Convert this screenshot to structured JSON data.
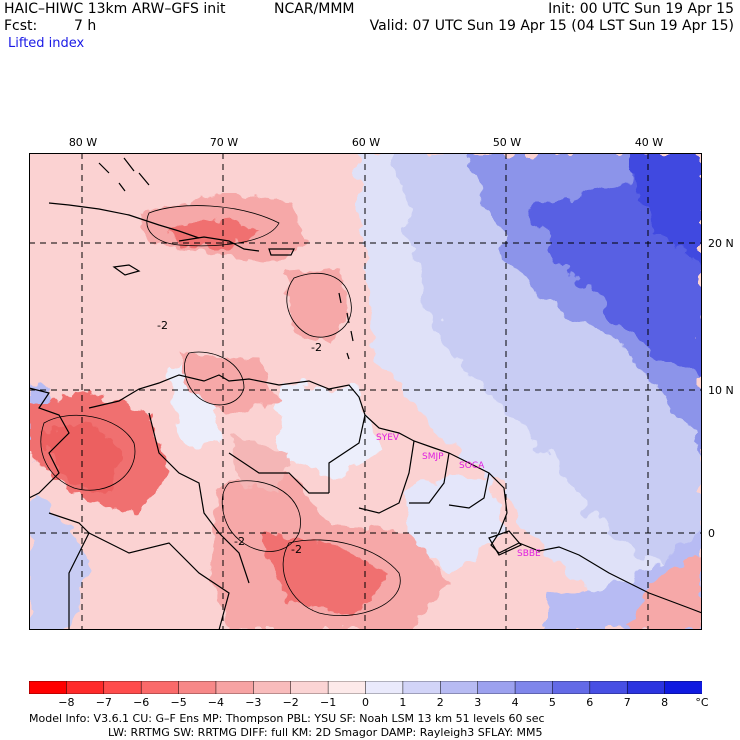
{
  "header": {
    "model_title": "HAIC–HIWC 13km ARW–GFS init",
    "org": "NCAR/MMM",
    "fcst_label": "Fcst:",
    "fcst_value": "7 h",
    "init": "Init: 00 UTC Sun 19 Apr 15",
    "valid": "Valid: 07 UTC Sun 19 Apr 15 (04 LST Sun 19 Apr 15)",
    "field_name": "Lifted index"
  },
  "map": {
    "lon_labels": [
      "80 W",
      "70 W",
      "60 W",
      "50 W",
      "40 W"
    ],
    "lat_labels": [
      "20 N",
      "10 N",
      "0"
    ],
    "contour_labels": [
      "-2",
      "-2",
      "-2",
      "-2"
    ],
    "stations": [
      "SYEV",
      "SMJP",
      "SOCA",
      "SBBE"
    ],
    "colors": {
      "strong_neg": "#f07070",
      "neg": "#f6a8a8",
      "weak_neg": "#fbd2d2",
      "neutral": "#f4f4fb",
      "weak_pos": "#c8ccf3",
      "pos": "#8c94ea",
      "strong_pos": "#5860e3",
      "station_text": "#e020e0",
      "coast": "#000000",
      "grid": "#000000"
    }
  },
  "colorbar": {
    "labels": [
      "−8",
      "−7",
      "−6",
      "−5",
      "−4",
      "−3",
      "−2",
      "−1",
      "0",
      "1",
      "2",
      "3",
      "4",
      "5",
      "6",
      "7",
      "8"
    ],
    "unit": "°C",
    "colors": [
      "#ff0000",
      "#ff2a2a",
      "#ff4c4c",
      "#fa6a6a",
      "#f78888",
      "#f7a3a3",
      "#f9bcbc",
      "#fbd4d4",
      "#fdeaea",
      "#eaeafc",
      "#d2d4f8",
      "#b7bbf3",
      "#9ca1ef",
      "#7f86eb",
      "#636ae7",
      "#474fe4",
      "#2b34e0",
      "#0f1ae0"
    ]
  },
  "footer": {
    "line1": "Model Info: V3.6.1     CU: G–F Ens  MP: Thompson      PBL: YSU        SF: Noah LSM      13 km    51 levels    60 sec",
    "line2": "LW: RRTMG     SW: RRTMG  DIFF: full     KM: 2D Smagor DAMP: Rayleigh3  SFLAY: MM5"
  }
}
